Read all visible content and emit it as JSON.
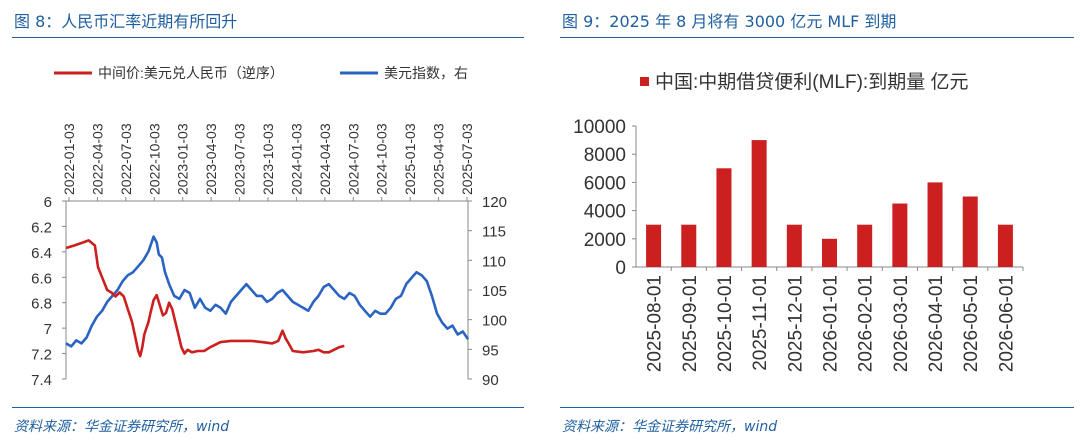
{
  "left": {
    "title": "图 8：人民币汇率近期有所回升",
    "source": "资料来源：华金证券研究所，wind",
    "legend": [
      "中间价:美元兑人民币（逆序）",
      "美元指数，右"
    ],
    "colors": {
      "cny": "#cc1f1f",
      "dxy": "#2a63c2",
      "title": "#1f5f9f"
    },
    "chart_data": {
      "type": "line",
      "x_ticks": [
        "2022-01-03",
        "2022-04-03",
        "2022-07-03",
        "2022-10-03",
        "2023-01-03",
        "2023-04-03",
        "2023-07-03",
        "2023-10-03",
        "2024-01-03",
        "2024-04-03",
        "2024-07-03",
        "2024-10-03",
        "2025-01-03",
        "2025-04-03",
        "2025-07-03"
      ],
      "y_left": {
        "ticks": [
          "6",
          "6.2",
          "6.4",
          "6.6",
          "6.8",
          "7",
          "7.2",
          "7.4"
        ],
        "range": [
          6.0,
          7.4
        ],
        "inverted": true
      },
      "y_right": {
        "ticks": [
          "120",
          "115",
          "110",
          "105",
          "100",
          "95",
          "90"
        ],
        "range": [
          90,
          120
        ]
      },
      "series": [
        {
          "name": "中间价:美元兑人民币（逆序）",
          "axis": "left",
          "points": [
            [
              0,
              6.37
            ],
            [
              0.8,
              6.35
            ],
            [
              1.5,
              6.33
            ],
            [
              2.2,
              6.31
            ],
            [
              2.8,
              6.35
            ],
            [
              3.1,
              6.52
            ],
            [
              3.5,
              6.6
            ],
            [
              4.0,
              6.7
            ],
            [
              4.4,
              6.72
            ],
            [
              4.8,
              6.75
            ],
            [
              5.2,
              6.72
            ],
            [
              5.6,
              6.75
            ],
            [
              6.0,
              6.85
            ],
            [
              6.4,
              6.95
            ],
            [
              6.8,
              7.1
            ],
            [
              7.0,
              7.18
            ],
            [
              7.2,
              7.22
            ],
            [
              7.4,
              7.15
            ],
            [
              7.6,
              7.05
            ],
            [
              7.8,
              7.0
            ],
            [
              8.0,
              6.95
            ],
            [
              8.2,
              6.88
            ],
            [
              8.5,
              6.78
            ],
            [
              8.8,
              6.74
            ],
            [
              9.1,
              6.82
            ],
            [
              9.4,
              6.9
            ],
            [
              9.7,
              6.88
            ],
            [
              10.0,
              6.8
            ],
            [
              10.3,
              6.85
            ],
            [
              10.6,
              6.95
            ],
            [
              10.9,
              7.05
            ],
            [
              11.2,
              7.15
            ],
            [
              11.5,
              7.2
            ],
            [
              11.8,
              7.17
            ],
            [
              12.2,
              7.19
            ],
            [
              12.8,
              7.18
            ],
            [
              13.4,
              7.18
            ],
            [
              14.0,
              7.15
            ],
            [
              15.0,
              7.11
            ],
            [
              16.0,
              7.1
            ],
            [
              17.0,
              7.1
            ],
            [
              18.0,
              7.1
            ],
            [
              19.0,
              7.11
            ],
            [
              20.0,
              7.12
            ],
            [
              20.6,
              7.1
            ],
            [
              21.0,
              7.02
            ],
            [
              21.3,
              7.08
            ],
            [
              21.6,
              7.12
            ],
            [
              22.0,
              7.18
            ],
            [
              23.0,
              7.19
            ],
            [
              24.0,
              7.18
            ],
            [
              24.5,
              7.17
            ],
            [
              25.0,
              7.19
            ],
            [
              25.5,
              7.19
            ],
            [
              26.0,
              7.17
            ],
            [
              26.5,
              7.15
            ],
            [
              27.0,
              7.14
            ]
          ]
        },
        {
          "name": "美元指数，右",
          "axis": "right",
          "points": [
            [
              0,
              96.0
            ],
            [
              0.5,
              95.5
            ],
            [
              1.0,
              96.5
            ],
            [
              1.5,
              96.0
            ],
            [
              2.0,
              97.0
            ],
            [
              2.5,
              99.0
            ],
            [
              3.0,
              100.5
            ],
            [
              3.5,
              101.5
            ],
            [
              4.0,
              103.0
            ],
            [
              4.5,
              104.0
            ],
            [
              5.0,
              105.0
            ],
            [
              5.5,
              106.5
            ],
            [
              6.0,
              107.5
            ],
            [
              6.5,
              108.0
            ],
            [
              7.0,
              109.0
            ],
            [
              7.5,
              110.0
            ],
            [
              8.0,
              111.5
            ],
            [
              8.5,
              114.0
            ],
            [
              8.8,
              113.0
            ],
            [
              9.0,
              111.0
            ],
            [
              9.3,
              110.5
            ],
            [
              9.6,
              108.0
            ],
            [
              10.0,
              106.0
            ],
            [
              10.5,
              104.0
            ],
            [
              11.0,
              103.5
            ],
            [
              11.5,
              105.0
            ],
            [
              12.0,
              104.5
            ],
            [
              12.5,
              102.0
            ],
            [
              13.0,
              103.5
            ],
            [
              13.5,
              102.0
            ],
            [
              14.0,
              101.5
            ],
            [
              14.5,
              102.5
            ],
            [
              15.0,
              102.0
            ],
            [
              15.5,
              101.0
            ],
            [
              16.0,
              103.0
            ],
            [
              16.5,
              104.0
            ],
            [
              17.0,
              105.0
            ],
            [
              17.5,
              106.0
            ],
            [
              18.0,
              105.0
            ],
            [
              18.5,
              104.0
            ],
            [
              19.0,
              104.0
            ],
            [
              19.5,
              103.0
            ],
            [
              20.0,
              103.5
            ],
            [
              20.5,
              104.5
            ],
            [
              21.0,
              105.0
            ],
            [
              21.5,
              104.0
            ],
            [
              22.0,
              103.0
            ],
            [
              22.5,
              102.5
            ],
            [
              23.0,
              102.0
            ],
            [
              23.5,
              101.5
            ],
            [
              24.0,
              103.0
            ],
            [
              24.5,
              104.0
            ],
            [
              25.0,
              105.5
            ],
            [
              25.5,
              106.0
            ],
            [
              26.0,
              105.0
            ],
            [
              26.5,
              104.0
            ],
            [
              27.0,
              103.5
            ],
            [
              27.5,
              104.5
            ],
            [
              28.0,
              104.0
            ],
            [
              28.5,
              102.5
            ],
            [
              29.0,
              101.5
            ],
            [
              29.5,
              100.5
            ],
            [
              30.0,
              101.5
            ],
            [
              30.5,
              101.0
            ],
            [
              31.0,
              101.0
            ],
            [
              31.5,
              102.0
            ],
            [
              32.0,
              103.5
            ],
            [
              32.5,
              104.0
            ],
            [
              33.0,
              106.0
            ],
            [
              33.5,
              107.0
            ],
            [
              34.0,
              108.0
            ],
            [
              34.5,
              107.5
            ],
            [
              35.0,
              106.5
            ],
            [
              35.5,
              104.0
            ],
            [
              36.0,
              101.0
            ],
            [
              36.5,
              99.5
            ],
            [
              37.0,
              98.5
            ],
            [
              37.5,
              99.0
            ],
            [
              38.0,
              97.5
            ],
            [
              38.5,
              98.0
            ],
            [
              39.0,
              96.7
            ]
          ]
        }
      ]
    }
  },
  "right": {
    "title": "图 9：2025 年 8 月将有 3000 亿元 MLF 到期",
    "source": "资料来源：华金证券研究所，wind",
    "legend": [
      "中国:中期借贷便利(MLF):到期量 亿元"
    ],
    "colors": {
      "bar": "#cc1f1f"
    },
    "chart_data": {
      "type": "bar",
      "categories": [
        "2025-08-01",
        "2025-09-01",
        "2025-10-01",
        "2025-11-01",
        "2025-12-01",
        "2026-01-01",
        "2026-02-01",
        "2026-03-01",
        "2026-04-01",
        "2026-05-01",
        "2026-06-01"
      ],
      "values": [
        3000,
        3000,
        7000,
        9000,
        3000,
        2000,
        3000,
        4500,
        6000,
        5000,
        3000
      ],
      "y_ticks": [
        "10000",
        "8000",
        "6000",
        "4000",
        "2000",
        "0"
      ],
      "ylim": [
        0,
        10000
      ]
    }
  }
}
